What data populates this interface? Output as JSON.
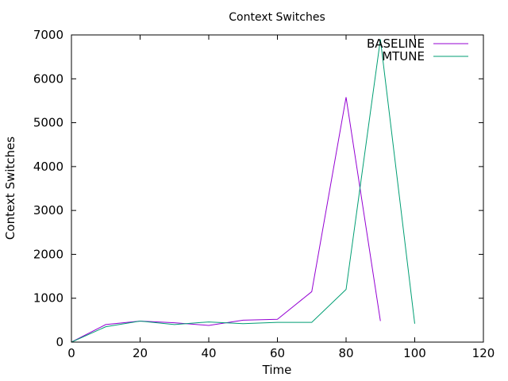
{
  "chart_data": {
    "type": "line",
    "title": "Context Switches",
    "xlabel": "Time",
    "ylabel": "Context Switches",
    "xlim": [
      0,
      120
    ],
    "ylim": [
      0,
      7000
    ],
    "x_ticks": [
      0,
      20,
      40,
      60,
      80,
      100,
      120
    ],
    "y_ticks": [
      0,
      1000,
      2000,
      3000,
      4000,
      5000,
      6000,
      7000
    ],
    "x_tick_labels": [
      "0",
      "20",
      "40",
      "60",
      "80",
      "100",
      "120"
    ],
    "y_tick_labels": [
      "0",
      "1000",
      "2000",
      "3000",
      "4000",
      "5000",
      "6000",
      "7000"
    ],
    "grid": false,
    "legend_position": "top-right",
    "series": [
      {
        "name": "BASELINE",
        "color": "#9400d3",
        "x": [
          0,
          10,
          20,
          30,
          40,
          50,
          60,
          70,
          80,
          90
        ],
        "y": [
          0,
          400,
          480,
          440,
          380,
          500,
          520,
          1150,
          5580,
          480
        ]
      },
      {
        "name": "MTUNE",
        "color": "#009e73",
        "x": [
          0,
          10,
          20,
          30,
          40,
          50,
          60,
          70,
          80,
          90,
          100
        ],
        "y": [
          0,
          350,
          480,
          400,
          460,
          420,
          450,
          450,
          1200,
          6900,
          420
        ]
      }
    ]
  }
}
